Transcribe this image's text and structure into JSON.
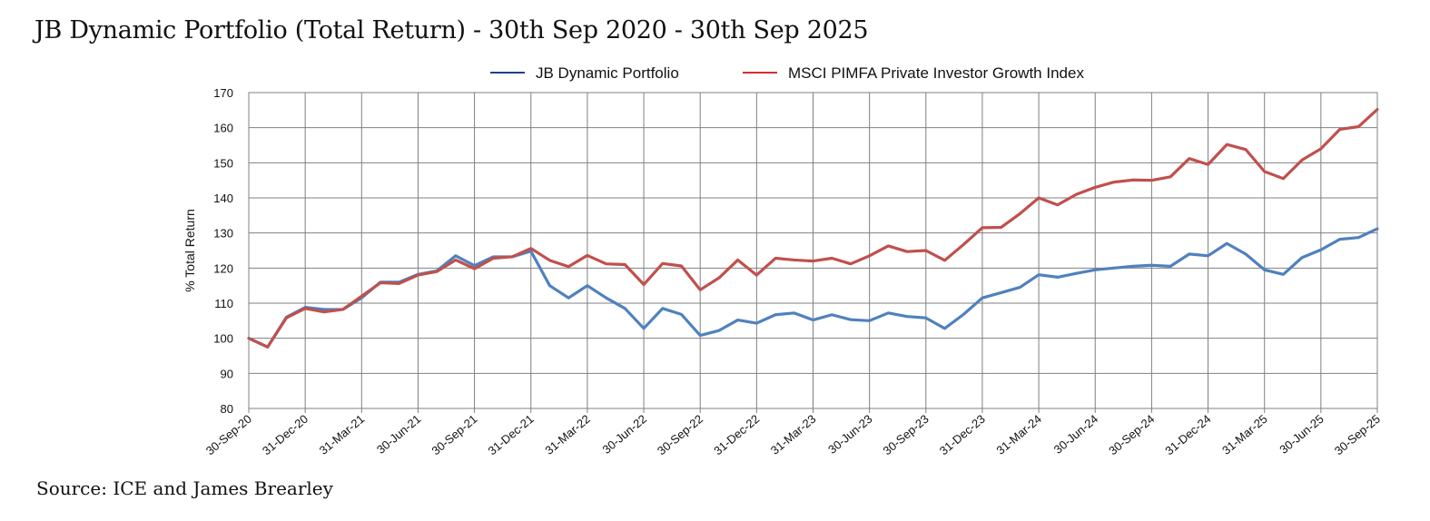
{
  "title": "JB Dynamic Portfolio (Total Return) - 30th Sep 2020 - 30th Sep 2025",
  "source": "Source: ICE and James Brearley",
  "chart_data": {
    "type": "line",
    "ylabel": "% Total Return",
    "ylim": [
      80,
      170
    ],
    "yticks": [
      80,
      90,
      100,
      110,
      120,
      130,
      140,
      150,
      160,
      170
    ],
    "grid": true,
    "legend_position": "top",
    "xtick_labels": [
      "30-Sep-20",
      "31-Dec-20",
      "31-Mar-21",
      "30-Jun-21",
      "30-Sep-21",
      "31-Dec-21",
      "31-Mar-22",
      "30-Jun-22",
      "30-Sep-22",
      "31-Dec-22",
      "31-Mar-23",
      "30-Jun-23",
      "30-Sep-23",
      "31-Dec-23",
      "31-Mar-24",
      "30-Jun-24",
      "30-Sep-24",
      "31-Dec-24",
      "31-Mar-25",
      "30-Jun-25",
      "30-Sep-25"
    ],
    "x_interval": "monthly",
    "series": [
      {
        "name": "JB Dynamic Portfolio",
        "color": "#4f81bd",
        "legend_color": "#1f3f8f",
        "values": [
          100,
          97.5,
          106,
          108.8,
          108.2,
          108.2,
          111.5,
          116,
          116,
          118.2,
          119.2,
          123.5,
          120.7,
          123.2,
          123.2,
          124.8,
          115,
          111.5,
          115,
          111.5,
          108.5,
          102.8,
          108.5,
          106.8,
          100.8,
          102.2,
          105.2,
          104.3,
          106.7,
          107.2,
          105.2,
          106.7,
          105.3,
          105,
          107.2,
          106.2,
          105.8,
          102.8,
          106.8,
          111.5,
          113,
          114.5,
          118.1,
          117.4,
          118.5,
          119.5,
          120,
          120.5,
          120.8,
          120.5,
          124,
          123.5,
          127,
          124,
          119.5,
          118.2,
          123,
          125.2,
          128.2,
          128.7,
          131.2
        ]
      },
      {
        "name": "MSCI PIMFA Private Investor Growth Index",
        "color": "#c0504d",
        "legend_color": "#d03030",
        "values": [
          100,
          97.5,
          105.8,
          108.5,
          107.5,
          108.2,
          112,
          115.8,
          115.6,
          118,
          119,
          122.3,
          119.8,
          122.8,
          123.2,
          125.6,
          122.2,
          120.4,
          123.6,
          121.2,
          121,
          115.3,
          121.3,
          120.6,
          113.8,
          117.2,
          122.3,
          118,
          122.8,
          122.3,
          122,
          122.8,
          121.2,
          123.5,
          126.3,
          124.7,
          125,
          122.2,
          126.7,
          131.5,
          131.6,
          135.5,
          140,
          138,
          141,
          143,
          144.5,
          145.1,
          145,
          146,
          151.2,
          149.5,
          155.2,
          153.8,
          147.5,
          145.5,
          150.8,
          154,
          159.5,
          160.3,
          165.2
        ]
      }
    ]
  }
}
